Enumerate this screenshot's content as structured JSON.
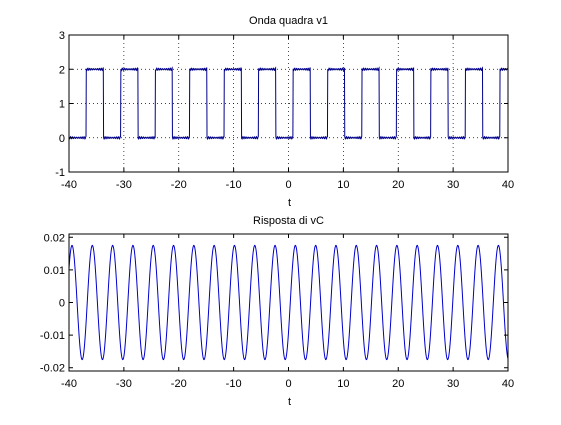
{
  "chart_data": [
    {
      "type": "line",
      "title": "Onda quadra v1",
      "xlabel": "t",
      "ylabel": "",
      "xlim": [
        -40,
        40
      ],
      "ylim": [
        -1,
        3
      ],
      "x_ticks": [
        -40,
        -30,
        -20,
        -10,
        0,
        10,
        20,
        30,
        40
      ],
      "y_ticks": [
        -1,
        0,
        1,
        2,
        3
      ],
      "x_tick_labels": [
        "-40",
        "-30",
        "-20",
        "-10",
        "0",
        "10",
        "20",
        "30",
        "40"
      ],
      "y_tick_labels": [
        "-1",
        "0",
        "1",
        "2",
        "3"
      ],
      "grid": true,
      "series": [
        {
          "color": "#00008b",
          "waveform": "square",
          "low": 0,
          "high": 2,
          "period": 6.28,
          "duty_cycle": 0.5,
          "x_range": [
            -40,
            40
          ]
        }
      ]
    },
    {
      "type": "line",
      "title": "Risposta di vC",
      "xlabel": "t",
      "ylabel": "",
      "xlim": [
        -40,
        40
      ],
      "ylim": [
        -0.021,
        0.021
      ],
      "x_ticks": [
        -40,
        -30,
        -20,
        -10,
        0,
        10,
        20,
        30,
        40
      ],
      "y_ticks": [
        -0.02,
        -0.01,
        0,
        0.01,
        0.02
      ],
      "x_tick_labels": [
        "-40",
        "-30",
        "-20",
        "-10",
        "0",
        "10",
        "20",
        "30",
        "40"
      ],
      "y_tick_labels": [
        "-0.02",
        "-0.01",
        "0",
        "0.01",
        "0.02"
      ],
      "grid": false,
      "series": [
        {
          "color": "#0000cd",
          "waveform": "triangle-like",
          "amplitude": 0.0175,
          "period": 3.7,
          "x_range": [
            -40,
            40
          ]
        }
      ]
    }
  ]
}
